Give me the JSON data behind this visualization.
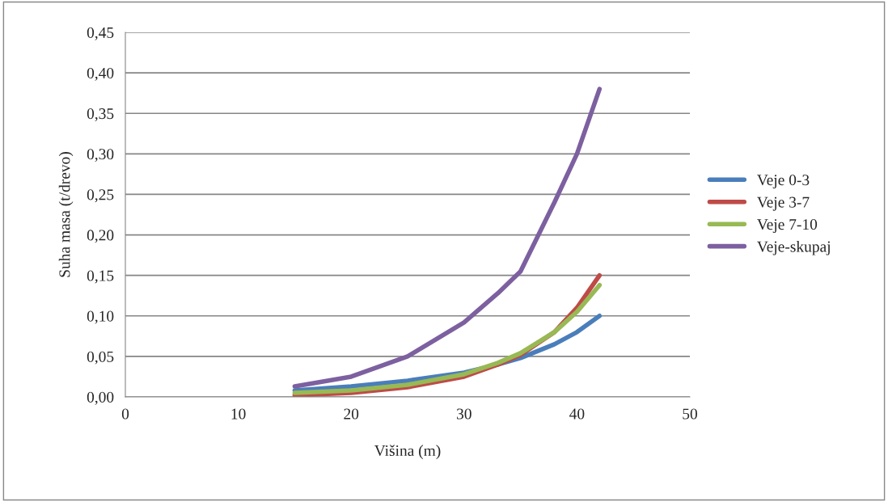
{
  "chart_data": {
    "type": "line",
    "xlabel": "Višina (m)",
    "ylabel": "Suha masa (t/drevo)",
    "xlim": [
      0,
      50
    ],
    "xticks": [
      0,
      10,
      20,
      30,
      40,
      50
    ],
    "ylim": [
      0,
      0.45
    ],
    "yticks": [
      {
        "value": 0,
        "label": "0,00"
      },
      {
        "value": 0.05,
        "label": "0,05"
      },
      {
        "value": 0.1,
        "label": "0,10"
      },
      {
        "value": 0.15,
        "label": "0,15"
      },
      {
        "value": 0.2,
        "label": "0,20"
      },
      {
        "value": 0.25,
        "label": "0,25"
      },
      {
        "value": 0.3,
        "label": "0,30"
      },
      {
        "value": 0.35,
        "label": "0,35"
      },
      {
        "value": 0.4,
        "label": "0,40"
      },
      {
        "value": 0.45,
        "label": "0,45"
      }
    ],
    "grid": "y",
    "legend": "right",
    "marker": "none",
    "x": [
      15,
      20,
      25,
      30,
      33,
      35,
      38,
      40,
      42
    ],
    "series": [
      {
        "name": "Veje 0-3",
        "color": "#4a7ebb",
        "values": [
          0.008,
          0.013,
          0.02,
          0.03,
          0.04,
          0.048,
          0.065,
          0.08,
          0.1
        ]
      },
      {
        "name": "Veje 3-7",
        "color": "#be4b48",
        "values": [
          0.002,
          0.005,
          0.012,
          0.025,
          0.04,
          0.052,
          0.08,
          0.11,
          0.15
        ]
      },
      {
        "name": "Veje 7-10",
        "color": "#98b954",
        "values": [
          0.005,
          0.008,
          0.015,
          0.028,
          0.042,
          0.054,
          0.08,
          0.105,
          0.138
        ]
      },
      {
        "name": "Veje-skupaj",
        "color": "#7d60a0",
        "values": [
          0.013,
          0.025,
          0.05,
          0.092,
          0.128,
          0.155,
          0.24,
          0.3,
          0.38
        ]
      }
    ]
  }
}
